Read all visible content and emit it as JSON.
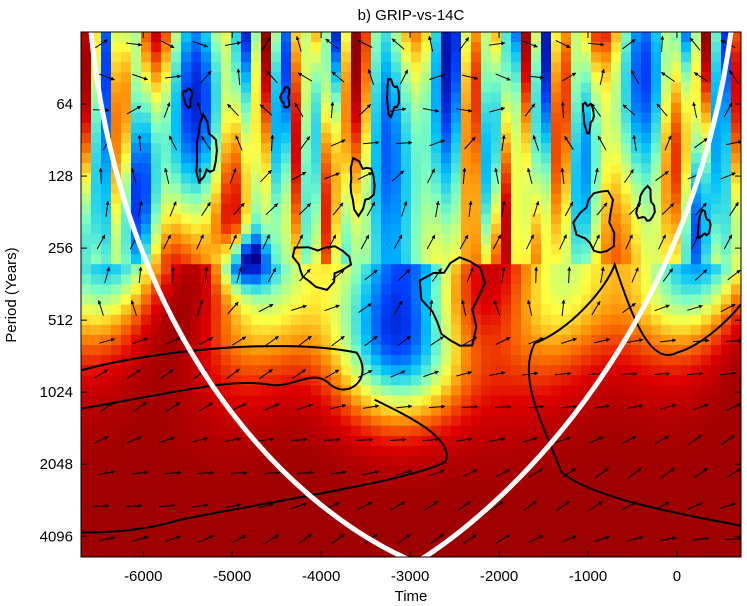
{
  "chart_data": {
    "type": "heatmap",
    "title": "b) GRIP-vs-14C",
    "xlabel": "Time",
    "ylabel": "Period (Years)",
    "xlim": [
      -6700,
      720
    ],
    "ylim": [
      32,
      5000
    ],
    "yscale": "log2",
    "x_ticks": [
      -6000,
      -5000,
      -4000,
      -3000,
      -2000,
      -1000,
      0
    ],
    "y_ticks": [
      64,
      128,
      256,
      512,
      1024,
      2048,
      4096
    ],
    "colormap": [
      "#00008f",
      "#0040ff",
      "#00c0ff",
      "#80ffc0",
      "#ffff40",
      "#ff8000",
      "#e00000",
      "#8b0000"
    ],
    "cone_of_influence_color": "#ffffff",
    "significance_contour_color": "#000000",
    "arrow_color": "#000000"
  }
}
